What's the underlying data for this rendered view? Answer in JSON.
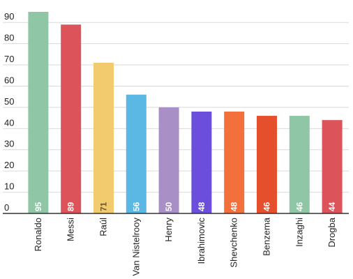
{
  "chart_data": {
    "type": "bar",
    "title": "",
    "xlabel": "",
    "ylabel": "",
    "ylim": [
      0,
      95
    ],
    "yticks": [
      0,
      10,
      20,
      30,
      40,
      50,
      60,
      70,
      80,
      90
    ],
    "grid": true,
    "categories": [
      "Ronaldo",
      "Messi",
      "Raúl",
      "Van Nistelrooy",
      "Henry",
      "Ibrahimovic",
      "Shevchenko",
      "Benzema",
      "Inzaghi",
      "Drogba"
    ],
    "values": [
      95,
      89,
      71,
      56,
      50,
      48,
      48,
      46,
      46,
      44
    ],
    "colors": [
      "#8ec6a6",
      "#dc5359",
      "#f2cb6e",
      "#5bb8e4",
      "#a88fc6",
      "#6b4fdc",
      "#f36f3b",
      "#e64f2b",
      "#8ec6a6",
      "#dc5359"
    ],
    "value_label_colors": [
      "#ffffff",
      "#ffffff",
      "#6d5a2b",
      "#ffffff",
      "#ffffff",
      "#ffffff",
      "#ffffff",
      "#ffffff",
      "#ffffff",
      "#ffffff"
    ]
  }
}
